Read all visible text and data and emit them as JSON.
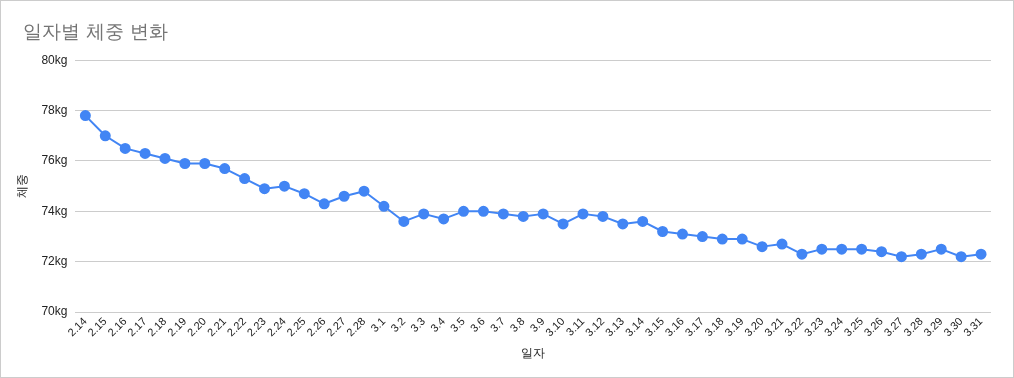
{
  "chart_data": {
    "type": "line",
    "title": "일자별 체중 변화",
    "xlabel": "일자",
    "ylabel": "체중",
    "categories": [
      "2.14",
      "2.15",
      "2.16",
      "2.17",
      "2.18",
      "2.19",
      "2.20",
      "2.21",
      "2.22",
      "2.23",
      "2.24",
      "2.25",
      "2.26",
      "2.27",
      "2.28",
      "3.1",
      "3.2",
      "3.3",
      "3.4",
      "3.5",
      "3.6",
      "3.7",
      "3.8",
      "3.9",
      "3.10",
      "3.11",
      "3.12",
      "3.13",
      "3.14",
      "3.15",
      "3.16",
      "3.17",
      "3.18",
      "3.19",
      "3.20",
      "3.21",
      "3.22",
      "3.23",
      "3.24",
      "3.25",
      "3.26",
      "3.27",
      "3.28",
      "3.29",
      "3.30",
      "3.31"
    ],
    "series": [
      {
        "color": "#4285f4",
        "values": [
          77.8,
          77.0,
          76.5,
          76.3,
          76.1,
          75.9,
          75.9,
          75.7,
          75.3,
          74.9,
          75.0,
          74.7,
          74.3,
          74.6,
          74.8,
          74.2,
          73.6,
          73.9,
          73.7,
          74.0,
          74.0,
          73.9,
          73.8,
          73.9,
          73.5,
          73.9,
          73.8,
          73.5,
          73.6,
          73.2,
          73.1,
          73.0,
          72.9,
          72.9,
          72.6,
          72.7,
          72.3,
          72.5,
          72.5,
          72.5,
          72.4,
          72.2,
          72.3,
          72.5,
          72.2,
          72.3
        ]
      }
    ],
    "ylim": [
      70,
      80
    ],
    "yticks": [
      {
        "value": 70,
        "label": "70kg"
      },
      {
        "value": 72,
        "label": "72kg"
      },
      {
        "value": 74,
        "label": "74kg"
      },
      {
        "value": 76,
        "label": "76kg"
      },
      {
        "value": 78,
        "label": "78kg"
      },
      {
        "value": 80,
        "label": "80kg"
      }
    ],
    "grid": "y",
    "legend": false,
    "marker": "circle",
    "line_style": "solid"
  }
}
